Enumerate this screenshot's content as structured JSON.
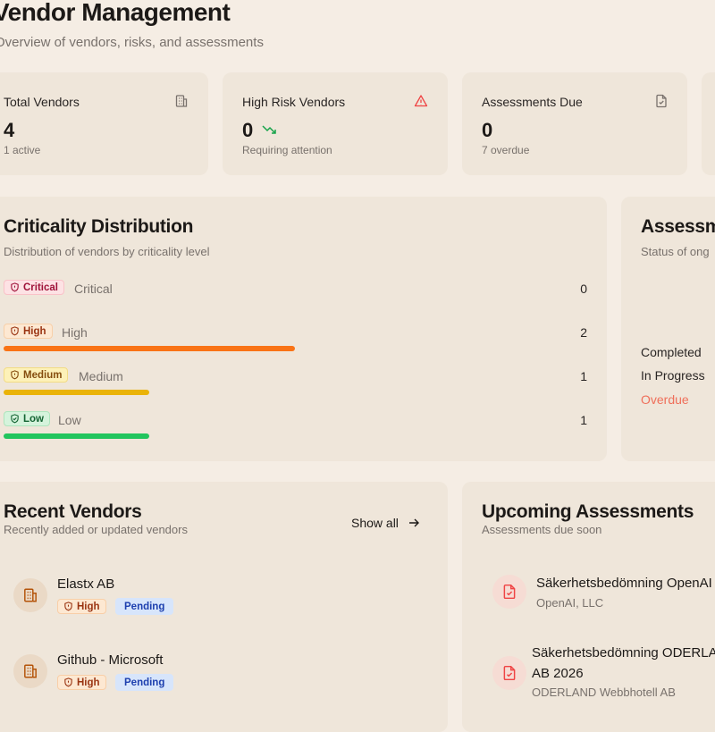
{
  "header": {
    "title": "Vendor Management",
    "subtitle": "Overview of vendors, risks, and assessments"
  },
  "stats": [
    {
      "label": "Total Vendors",
      "value": "4",
      "sub": "1 active",
      "icon": "building-icon"
    },
    {
      "label": "High Risk Vendors",
      "value": "0",
      "sub": "Requiring attention",
      "icon": "warning-triangle-icon",
      "trend": "trending-down-icon"
    },
    {
      "label": "Assessments Due",
      "value": "0",
      "sub": "7 overdue",
      "icon": "file-check-icon"
    }
  ],
  "criticality": {
    "title": "Criticality Distribution",
    "description": "Distribution of vendors by criticality level",
    "max": 4,
    "rows": [
      {
        "badge": "Critical",
        "label": "Critical",
        "count": "0",
        "value": 0,
        "color": "#dc2626"
      },
      {
        "badge": "High",
        "label": "High",
        "count": "2",
        "value": 2,
        "color": "#f97316"
      },
      {
        "badge": "Medium",
        "label": "Medium",
        "count": "1",
        "value": 1,
        "color": "#eab308"
      },
      {
        "badge": "Low",
        "label": "Low",
        "count": "1",
        "value": 1,
        "color": "#22c55e"
      }
    ]
  },
  "assessment_status": {
    "title": "Assessm",
    "description": "Status of ong",
    "items": [
      "Completed",
      "In Progress",
      "Overdue"
    ],
    "overdue_color": "#ef6f5a"
  },
  "recent_vendors": {
    "title": "Recent Vendors",
    "description": "Recently added or updated vendors",
    "show_all": "Show all",
    "items": [
      {
        "name": "Elastx AB",
        "criticality": "High",
        "status": "Pending"
      },
      {
        "name": "Github - Microsoft",
        "criticality": "High",
        "status": "Pending"
      }
    ]
  },
  "upcoming": {
    "title": "Upcoming Assessments",
    "description": "Assessments due soon",
    "items": [
      {
        "title": "Säkerhetsbedömning OpenAI",
        "org": "OpenAI, LLC"
      },
      {
        "title_line1": "Säkerhetsbedömning ODERLAND",
        "title_line2": "AB 2026",
        "org": "ODERLAND Webbhotell AB"
      }
    ]
  },
  "colors": {
    "background": "#f5ede4",
    "card": "#efe6da",
    "accent_orange": "#f97316",
    "accent_yellow": "#eab308",
    "accent_green": "#22c55e",
    "danger": "#ef4444"
  }
}
